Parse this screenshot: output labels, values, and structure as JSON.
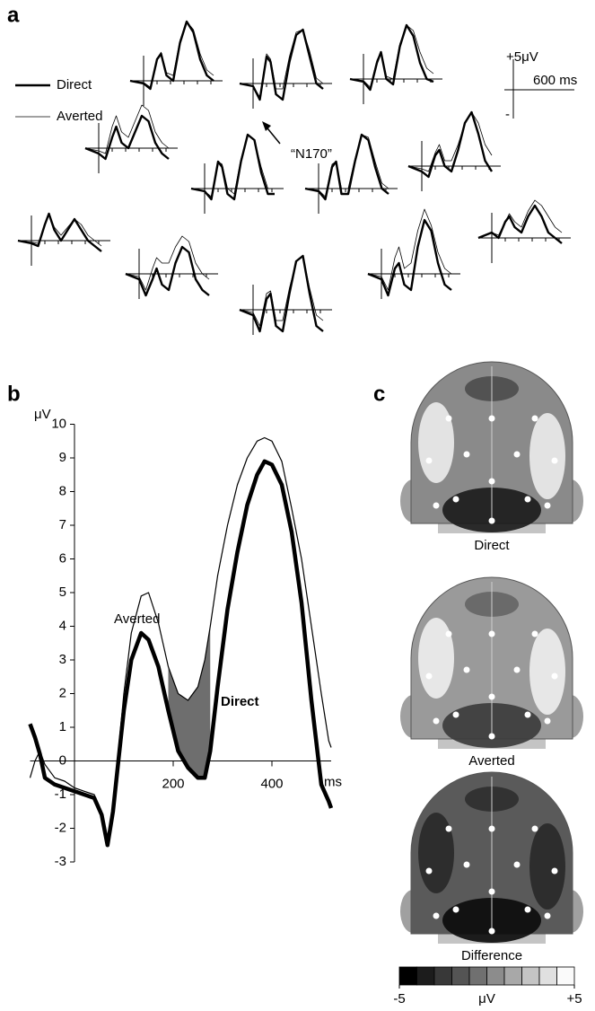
{
  "panel_labels": [
    "a",
    "b",
    "c"
  ],
  "panel_a": {
    "legend": [
      {
        "name": "Direct",
        "line_width": 2.4
      },
      {
        "name": "Averted",
        "line_width": 0.8
      }
    ],
    "scale_bar": {
      "amplitude": "+5μV",
      "duration": "600 ms",
      "negative": "-"
    },
    "annotation": "“N170”",
    "t": [
      -100,
      0,
      50,
      100,
      130,
      170,
      220,
      270,
      320,
      370,
      420,
      470,
      520
    ],
    "plots": [
      {
        "direct": [
          0,
          -0.5,
          -1.5,
          4,
          5,
          1,
          0,
          7,
          11,
          9,
          4,
          1,
          0
        ],
        "averted": [
          0,
          -0.3,
          -1.2,
          4.2,
          5.3,
          1.5,
          1,
          7.5,
          11,
          9.5,
          5,
          2,
          1
        ]
      },
      {
        "direct": [
          0,
          -0.5,
          -3,
          5,
          4,
          -2,
          -3,
          4,
          9,
          10,
          5,
          0,
          -1
        ],
        "averted": [
          0,
          -0.5,
          -2.5,
          5.5,
          4.5,
          -1,
          -1,
          5,
          9.5,
          10,
          6,
          1,
          0
        ]
      },
      {
        "direct": [
          0,
          -0.5,
          -2,
          3,
          5,
          0,
          -1,
          6,
          10,
          8,
          3,
          0,
          -0.5
        ],
        "averted": [
          0,
          -0.3,
          -1.5,
          3.5,
          5,
          0.5,
          0,
          6.5,
          10,
          9,
          5,
          2,
          1
        ]
      },
      {
        "direct": [
          0,
          -1,
          -2,
          2,
          4,
          1,
          0,
          3,
          6,
          5,
          1,
          -1,
          -2
        ],
        "averted": [
          0,
          -0.5,
          -1,
          4,
          6,
          3,
          2,
          5,
          8,
          7,
          3,
          1,
          0
        ]
      },
      {
        "direct": [
          0,
          -1,
          -2,
          2,
          3,
          0,
          -1,
          3,
          8,
          10,
          6,
          1,
          -1
        ],
        "averted": [
          0,
          -0.5,
          -1,
          2.5,
          4,
          1,
          1,
          4,
          8,
          10,
          8,
          4,
          2
        ]
      },
      {
        "direct": [
          0,
          -0.5,
          -2,
          5,
          4,
          -1,
          -2,
          5,
          10,
          9,
          3,
          -1,
          -1
        ],
        "averted": [
          0,
          -0.5,
          -1.5,
          5,
          4.5,
          0,
          -1,
          5.5,
          10,
          9,
          4,
          0,
          0
        ]
      },
      {
        "direct": [
          0,
          -0.5,
          -2,
          4,
          5,
          -1,
          -1,
          5,
          10,
          9,
          4,
          0,
          -1
        ],
        "averted": [
          0,
          -0.3,
          -1.5,
          4.5,
          5,
          0,
          0,
          5.5,
          10,
          9.5,
          5,
          1,
          0
        ]
      },
      {
        "direct": [
          0,
          -0.5,
          -1,
          3,
          5,
          2,
          0,
          2,
          4,
          2,
          0,
          -1,
          -2
        ],
        "averted": [
          0,
          -0.3,
          -0.5,
          3,
          5,
          2.5,
          1,
          2.5,
          4,
          3,
          1,
          0,
          -1
        ]
      },
      {
        "direct": [
          0,
          1,
          0,
          3,
          4,
          2,
          1,
          4,
          6,
          4,
          1,
          0,
          -1
        ],
        "averted": [
          0,
          1,
          0.5,
          3,
          4.5,
          3,
          2,
          5,
          7,
          6,
          4,
          2,
          1
        ]
      },
      {
        "direct": [
          0,
          -1,
          -4,
          -1,
          1,
          -2,
          -3,
          2,
          5,
          4,
          -1,
          -3,
          -4
        ],
        "averted": [
          0,
          -0.5,
          -3,
          1,
          3,
          2,
          2,
          5,
          7,
          6,
          2,
          0,
          -1
        ]
      },
      {
        "direct": [
          0,
          -1,
          -4,
          1,
          2,
          -2,
          -3,
          5,
          10,
          8,
          2,
          -2,
          -3
        ],
        "averted": [
          0,
          -0.5,
          -3,
          3,
          5,
          1,
          2,
          8,
          12,
          9,
          4,
          1,
          0
        ]
      },
      {
        "direct": [
          0,
          -1,
          -4,
          2,
          3,
          -3,
          -4,
          3,
          9,
          10,
          3,
          -3,
          -4
        ],
        "averted": [
          0,
          -0.5,
          -3,
          3,
          3.5,
          -2,
          -2,
          4,
          9,
          10,
          4,
          -1,
          -2
        ]
      }
    ]
  },
  "chart_data": {
    "type": "line",
    "xlabel": "ms",
    "ylabel": "μV",
    "xlim": [
      -90,
      520
    ],
    "ylim": [
      -3,
      10
    ],
    "xticks": [
      200,
      400
    ],
    "yticks": [
      -3,
      -2,
      -1,
      0,
      1,
      2,
      3,
      4,
      5,
      6,
      7,
      8,
      9,
      10
    ],
    "shaded_range": [
      180,
      280
    ],
    "shade_color": "#6e6e6e",
    "x": [
      -90,
      -80,
      -70,
      -60,
      -40,
      -20,
      0,
      20,
      40,
      55,
      67,
      78,
      89,
      100,
      115,
      135,
      150,
      170,
      190,
      210,
      230,
      250,
      264,
      275,
      290,
      310,
      330,
      350,
      370,
      385,
      400,
      420,
      440,
      460,
      480,
      500,
      515,
      520
    ],
    "series": [
      {
        "name": "Averted",
        "color": "#000000",
        "line_width": 1.2,
        "values": [
          -0.5,
          0,
          0.3,
          -0.1,
          -0.5,
          -0.6,
          -0.8,
          -0.9,
          -1.0,
          -1.5,
          -2.3,
          -1.3,
          0.3,
          2.0,
          3.8,
          4.9,
          5.0,
          4.1,
          2.8,
          2.0,
          1.8,
          2.2,
          3.0,
          4.0,
          5.5,
          7.0,
          8.2,
          9.0,
          9.5,
          9.6,
          9.5,
          8.9,
          7.5,
          6.0,
          4.0,
          2.0,
          0.6,
          0.4
        ]
      },
      {
        "name": "Direct",
        "color": "#000000",
        "line_width": 4.5,
        "values": [
          1.1,
          0.7,
          0.2,
          -0.5,
          -0.7,
          -0.8,
          -0.9,
          -1.0,
          -1.1,
          -1.6,
          -2.5,
          -1.5,
          0,
          1.5,
          3.0,
          3.8,
          3.6,
          2.8,
          1.5,
          0.3,
          -0.2,
          -0.5,
          -0.5,
          0.3,
          2.2,
          4.5,
          6.2,
          7.6,
          8.5,
          8.9,
          8.8,
          8.2,
          6.8,
          4.7,
          1.8,
          -0.7,
          -1.2,
          -1.4
        ]
      }
    ]
  },
  "panel_c": {
    "maps": [
      "Direct",
      "Averted",
      "Difference"
    ],
    "colorbar": {
      "colors": [
        "#000000",
        "#1c1c1c",
        "#383838",
        "#545454",
        "#707070",
        "#8c8c8c",
        "#a8a8a8",
        "#c4c4c4",
        "#e0e0e0",
        "#fafafa"
      ],
      "ticks": [
        -5,
        {
          "value": 5,
          "label": "+5"
        }
      ],
      "unit": "μV"
    }
  }
}
